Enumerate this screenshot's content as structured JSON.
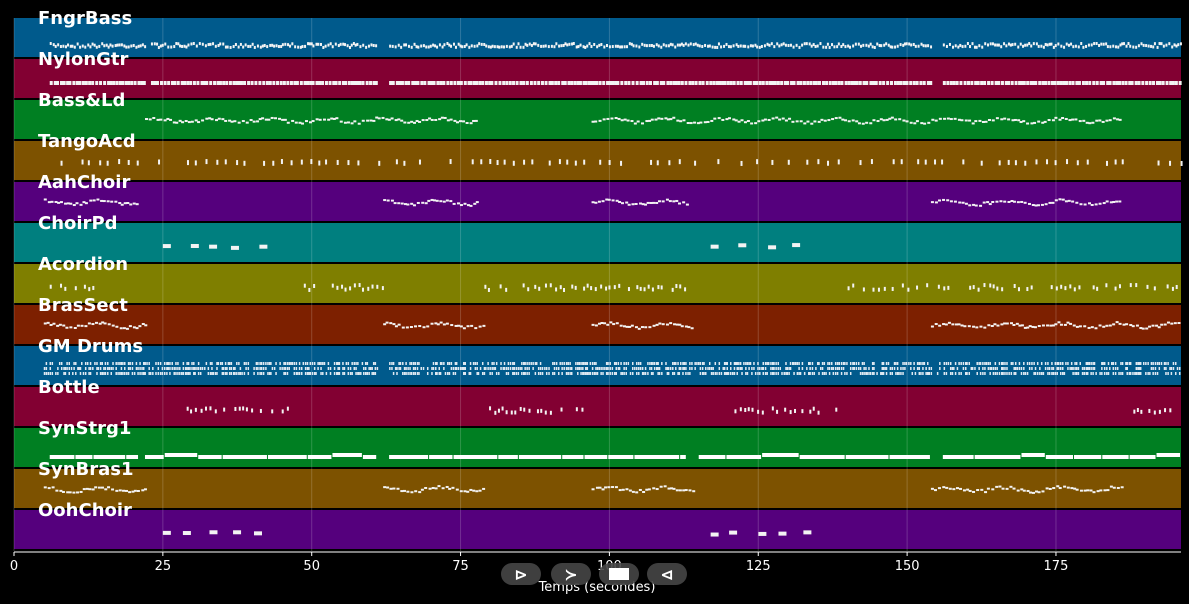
{
  "window": {
    "width": 1189,
    "height": 604
  },
  "tracks": [
    {
      "name": "FngrBass",
      "color": "#005a8c"
    },
    {
      "name": "NylonGtr",
      "color": "#820032"
    },
    {
      "name": "Bass&Ld",
      "color": "#007f22"
    },
    {
      "name": "TangoAcd",
      "color": "#7d5200"
    },
    {
      "name": "AahChoir",
      "color": "#55007d"
    },
    {
      "name": "ChoirPd",
      "color": "#007f7f"
    },
    {
      "name": "Acordion",
      "color": "#7f7f00"
    },
    {
      "name": "BrasSect",
      "color": "#7d2000"
    },
    {
      "name": "GM Drums",
      "color": "#005a8c"
    },
    {
      "name": "Bottle",
      "color": "#820032"
    },
    {
      "name": "SynStrg1",
      "color": "#007f22"
    },
    {
      "name": "SynBras1",
      "color": "#7d5200"
    },
    {
      "name": "OohChoir",
      "color": "#55007d"
    }
  ],
  "x_axis": {
    "label": "Temps (secondes)",
    "min": 0,
    "max": 196,
    "ticks": [
      0,
      25,
      50,
      75,
      100,
      125,
      150,
      175
    ]
  },
  "note_segments": [
    {
      "track": 0,
      "ranges": [
        [
          6,
          22
        ],
        [
          23,
          61
        ],
        [
          63,
          154
        ],
        [
          156,
          196
        ]
      ],
      "style": "dense"
    },
    {
      "track": 1,
      "ranges": [
        [
          6,
          22
        ],
        [
          23,
          61
        ],
        [
          63,
          154
        ],
        [
          156,
          196
        ]
      ],
      "style": "blocks"
    },
    {
      "track": 2,
      "ranges": [
        [
          22,
          78
        ],
        [
          97,
          186
        ]
      ],
      "style": "melody"
    },
    {
      "track": 3,
      "ranges": [
        [
          6,
          196
        ]
      ],
      "style": "sparse"
    },
    {
      "track": 4,
      "ranges": [
        [
          5,
          21
        ],
        [
          62,
          78
        ],
        [
          97,
          113
        ],
        [
          154,
          186
        ]
      ],
      "style": "melody"
    },
    {
      "track": 5,
      "ranges": [
        [
          25,
          43
        ],
        [
          117,
          135
        ]
      ],
      "style": "pads"
    },
    {
      "track": 6,
      "ranges": [
        [
          6,
          14
        ],
        [
          48,
          62
        ],
        [
          79,
          113
        ],
        [
          140,
          196
        ]
      ],
      "style": "sparse-melody"
    },
    {
      "track": 7,
      "ranges": [
        [
          5,
          22
        ],
        [
          62,
          79
        ],
        [
          97,
          114
        ],
        [
          154,
          196
        ]
      ],
      "style": "melody"
    },
    {
      "track": 8,
      "ranges": [
        [
          5,
          61
        ],
        [
          63,
          154
        ],
        [
          155,
          196
        ]
      ],
      "style": "drums"
    },
    {
      "track": 9,
      "ranges": [
        [
          29,
          47
        ],
        [
          79,
          97
        ],
        [
          121,
          138
        ],
        [
          188,
          196
        ]
      ],
      "style": "sparse-melody"
    },
    {
      "track": 10,
      "ranges": [
        [
          6,
          21
        ],
        [
          22,
          61
        ],
        [
          63,
          113
        ],
        [
          115,
          154
        ],
        [
          156,
          196
        ]
      ],
      "style": "sustain"
    },
    {
      "track": 11,
      "ranges": [
        [
          5,
          22
        ],
        [
          62,
          79
        ],
        [
          97,
          114
        ],
        [
          154,
          186
        ]
      ],
      "style": "melody"
    },
    {
      "track": 12,
      "ranges": [
        [
          25,
          43
        ],
        [
          117,
          135
        ]
      ],
      "style": "pads"
    }
  ],
  "playback_controls": [
    {
      "name": "play-button",
      "label": "⊳"
    },
    {
      "name": "forward-button",
      "label": "≻"
    },
    {
      "name": "stop-button",
      "label": "■"
    },
    {
      "name": "rewind-button",
      "label": "⊲"
    }
  ]
}
